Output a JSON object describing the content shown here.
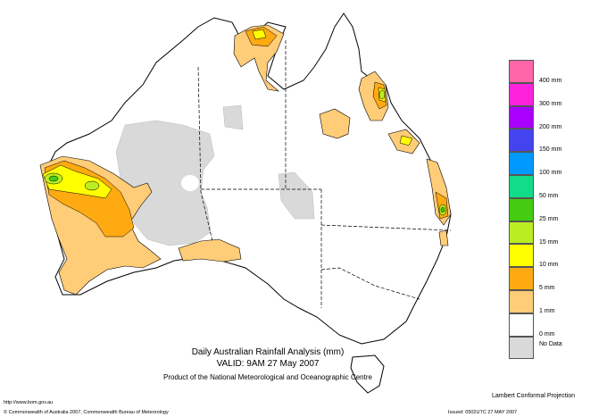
{
  "title": "Daily Australian Rainfall Analysis (mm)",
  "valid": "VALID: 9AM 27 May 2007",
  "product": "Product of the National Meteorological and Oceanographic Centre",
  "url": "http://www.bom.gov.au",
  "copyright": "© Commonwealth of Australia 2007, Commonwealth Bureau of Meteorology",
  "projection": "Lambert Conformal Projection",
  "issued": "Issued: 0502UTC 27 MAY 2007",
  "legend": {
    "items": [
      {
        "label": "400 mm",
        "color": "#ff66aa"
      },
      {
        "label": "300 mm",
        "color": "#ff22dd"
      },
      {
        "label": "200 mm",
        "color": "#aa00ff"
      },
      {
        "label": "150 mm",
        "color": "#4444ee"
      },
      {
        "label": "100 mm",
        "color": "#0099ff"
      },
      {
        "label": "50 mm",
        "color": "#11dd88"
      },
      {
        "label": "25 mm",
        "color": "#44cc11"
      },
      {
        "label": "15 mm",
        "color": "#bbee22"
      },
      {
        "label": "10 mm",
        "color": "#ffff00"
      },
      {
        "label": "5 mm",
        "color": "#ffaa11"
      },
      {
        "label": "1 mm",
        "color": "#ffcc77"
      },
      {
        "label": "0 mm",
        "color": "#ffffff"
      }
    ],
    "no_data": {
      "label": "No Data",
      "color": "#d9d9d9"
    }
  }
}
